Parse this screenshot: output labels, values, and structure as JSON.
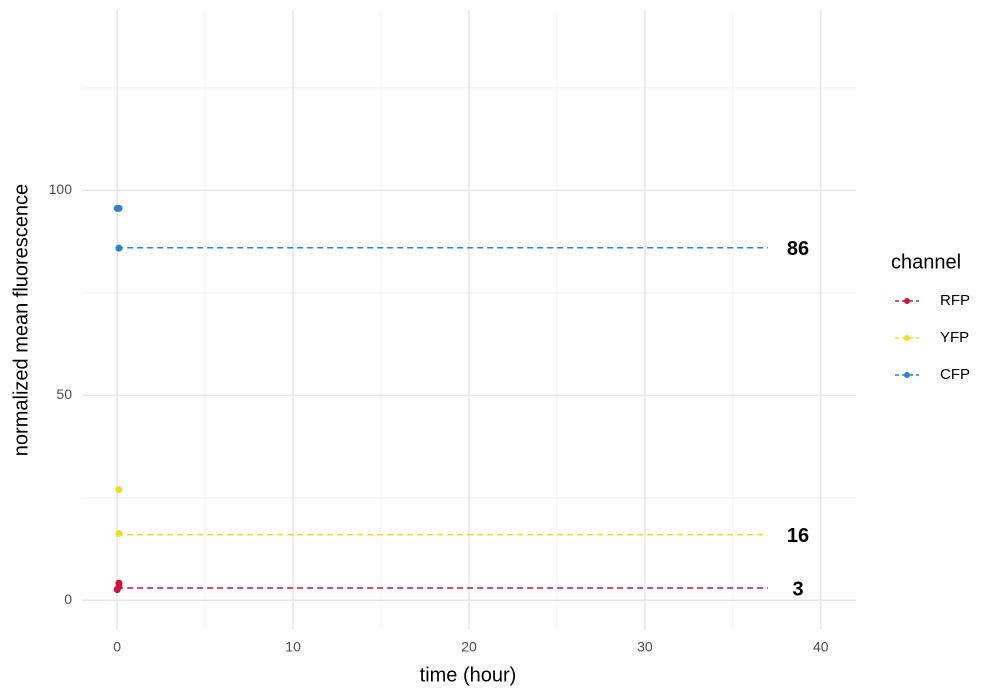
{
  "chart_data": {
    "type": "scatter",
    "x_label": "time (hour)",
    "y_label": "normalized mean fluorescence",
    "xlim": [
      -2,
      42
    ],
    "xticks": [
      0,
      10,
      20,
      30,
      40
    ],
    "minor_xticks": [
      5,
      15,
      25,
      35
    ],
    "ylim": [
      -7,
      144
    ],
    "yticks": [
      0,
      50,
      100
    ],
    "minor_yticks": [
      25,
      75,
      125
    ],
    "grid": true,
    "legend_title": "channel",
    "series": [
      {
        "name": "RFP",
        "color": "#c9173b",
        "x": [
          0,
          0.1,
          0.1
        ],
        "values": [
          2.6,
          4.2,
          3.3
        ]
      },
      {
        "name": "YFP",
        "color": "#ecdd26",
        "x": [
          0.1,
          0.1
        ],
        "values": [
          27,
          16.3
        ]
      },
      {
        "name": "CFP",
        "color": "#2b84c6",
        "x": [
          0,
          0.1,
          0.1
        ],
        "values": [
          95.6,
          95.6,
          85.9
        ]
      }
    ],
    "reference_lines": [
      {
        "series": 0,
        "value": 3,
        "xlim": [
          0,
          37
        ]
      },
      {
        "series": 1,
        "value": 16,
        "xlim": [
          0,
          37
        ]
      },
      {
        "series": 2,
        "value": 86,
        "xlim": [
          0,
          37
        ]
      }
    ]
  }
}
